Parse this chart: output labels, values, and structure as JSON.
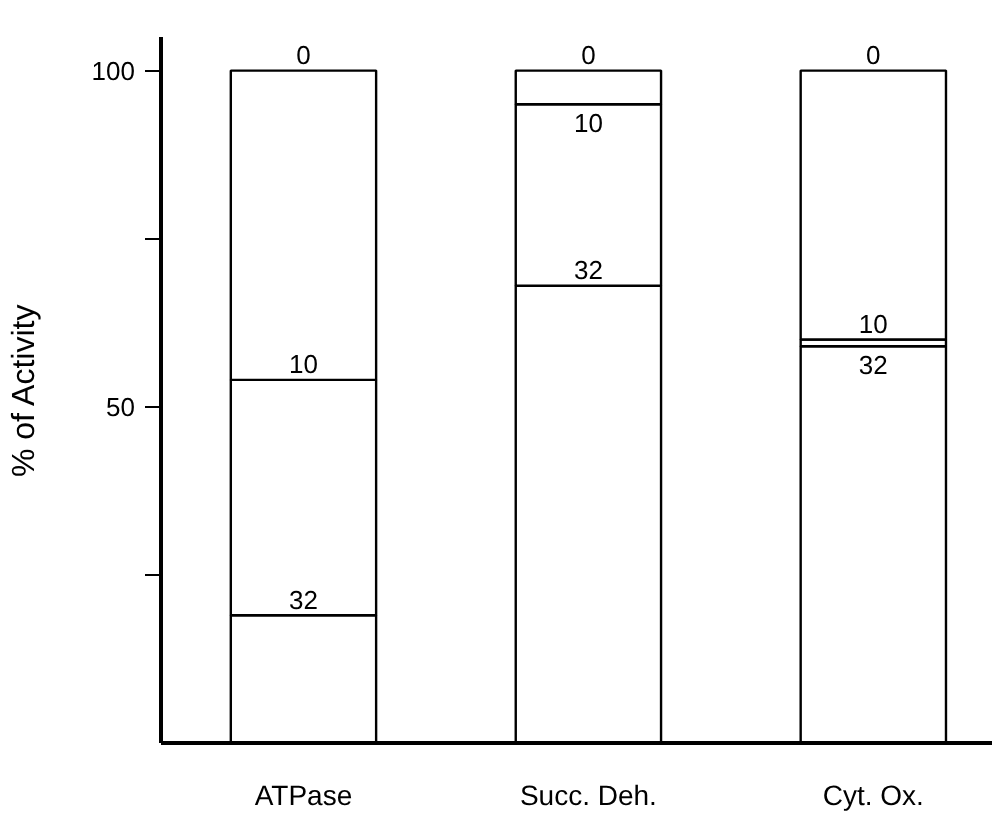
{
  "chart_data": {
    "type": "bar",
    "stacked": true,
    "ylabel": "% of Activity",
    "categories": [
      "ATPase",
      "Succ. Deh.",
      "Cyt. Ox."
    ],
    "series": [
      {
        "name": "32",
        "color": "#ffffff",
        "values": [
          19,
          68,
          59
        ]
      },
      {
        "name": "10",
        "color": "#ffffff",
        "values": [
          35,
          27,
          1
        ]
      },
      {
        "name": "0",
        "color": "#ffffff",
        "values": [
          46,
          5,
          40
        ]
      }
    ],
    "ylim": [
      0,
      105
    ],
    "yticks": [
      {
        "value": 25,
        "label": null
      },
      50,
      {
        "value": 75,
        "label": null
      },
      100
    ],
    "grid": false
  }
}
